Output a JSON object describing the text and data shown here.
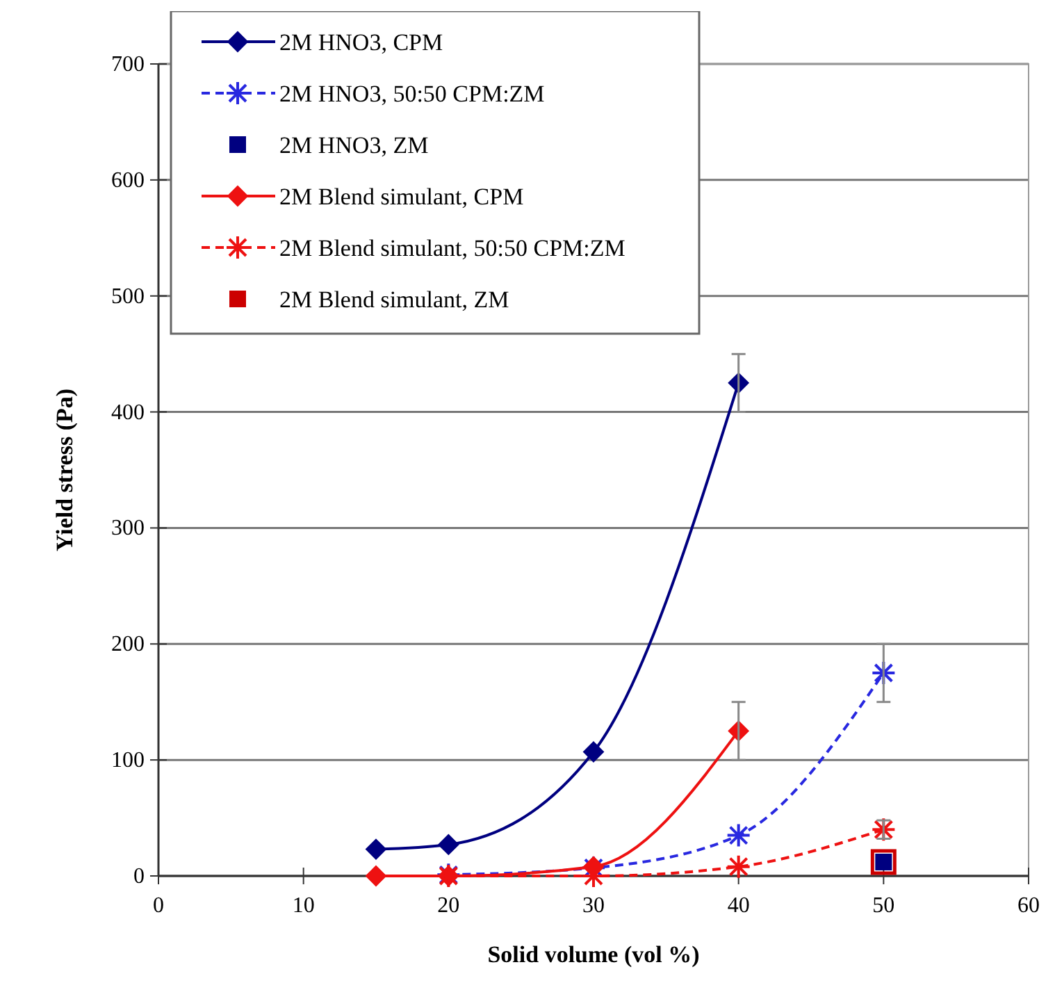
{
  "chart_data": {
    "type": "line",
    "xlabel": "Solid volume  (vol %)",
    "ylabel": "Yield  stress (Pa)",
    "xlim": [
      0,
      60
    ],
    "xticks": [
      0,
      10,
      20,
      30,
      40,
      50,
      60
    ],
    "ylim": [
      0,
      700
    ],
    "yticks": [
      0,
      100,
      200,
      300,
      400,
      500,
      600,
      700
    ],
    "grid": "y",
    "legend": "top left",
    "series": [
      {
        "name": "2M HNO3, CPM",
        "color": "#000080",
        "x": [
          15,
          20,
          30,
          40
        ],
        "values": [
          23,
          27,
          107,
          425
        ],
        "errors": [
          null,
          null,
          null,
          25
        ],
        "marker": "diamond",
        "line_style": "solid"
      },
      {
        "name": "2M HNO3, 50:50 CPM:ZM",
        "color": "#2828e0",
        "x": [
          20,
          30,
          40,
          50
        ],
        "values": [
          1,
          7,
          35,
          175
        ],
        "errors": [
          null,
          null,
          null,
          25
        ],
        "marker": "cross",
        "line_style": "dashed"
      },
      {
        "name": "2M HNO3, ZM",
        "type": "scatter",
        "color": "#000080",
        "x": [
          50
        ],
        "values": [
          12
        ],
        "marker": "square"
      },
      {
        "name": "2M Blend simulant, CPM",
        "color": "#ee1111",
        "x": [
          15,
          20,
          30,
          40
        ],
        "values": [
          0,
          0,
          8,
          125
        ],
        "errors": [
          null,
          null,
          null,
          25
        ],
        "marker": "diamond",
        "line_style": "solid"
      },
      {
        "name": "2M Blend simulant, 50:50 CPM:ZM",
        "color": "#ee1111",
        "x": [
          20,
          30,
          40,
          50
        ],
        "values": [
          0,
          0,
          8,
          40
        ],
        "errors": [
          null,
          null,
          null,
          8
        ],
        "marker": "cross",
        "line_style": "dashed"
      },
      {
        "name": "2M Blend simulant, ZM",
        "type": "scatter",
        "color": "#cc0000",
        "x": [
          50
        ],
        "values": [
          12
        ],
        "marker": "square"
      }
    ]
  }
}
